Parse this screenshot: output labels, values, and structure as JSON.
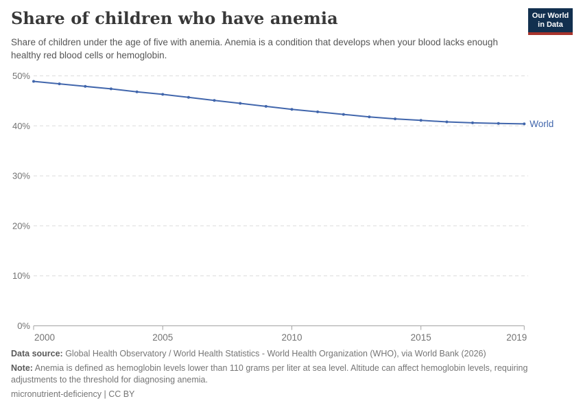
{
  "header": {
    "title": "Share of children who have anemia",
    "subtitle": "Share of children under the age of five with anemia. Anemia is a condition that develops when your blood lacks enough healthy red blood cells or hemoglobin.",
    "logo": {
      "line1": "Our World",
      "line2": "in Data",
      "bg_color": "#12304f",
      "accent_color": "#a8342c"
    }
  },
  "chart_data": {
    "type": "line",
    "title": "Share of children who have anemia",
    "x": [
      2000,
      2001,
      2002,
      2003,
      2004,
      2005,
      2006,
      2007,
      2008,
      2009,
      2010,
      2011,
      2012,
      2013,
      2014,
      2015,
      2016,
      2017,
      2018,
      2019
    ],
    "series": [
      {
        "name": "World",
        "color": "#4166ac",
        "values": [
          48.9,
          48.4,
          47.9,
          47.4,
          46.8,
          46.3,
          45.7,
          45.1,
          44.5,
          43.9,
          43.3,
          42.8,
          42.3,
          41.8,
          41.4,
          41.1,
          40.8,
          40.6,
          40.5,
          40.4
        ]
      }
    ],
    "xlabel": "",
    "ylabel": "",
    "ylim": [
      0,
      50
    ],
    "yticks": [
      0,
      10,
      20,
      30,
      40,
      50
    ],
    "ytick_labels": [
      "0%",
      "10%",
      "20%",
      "30%",
      "40%",
      "50%"
    ],
    "xticks": [
      2000,
      2005,
      2010,
      2015,
      2019
    ],
    "grid": "horizontal dashed gridlines, solid baseline at 0%",
    "legend_position": "label at right end of line",
    "colors": {
      "gridline": "#dcdcdc",
      "axis": "#a2a2a2",
      "tick_label": "#737373"
    }
  },
  "footer": {
    "data_source_label": "Data source:",
    "data_source_text": " Global Health Observatory / World Health Statistics - World Health Organization (WHO), via World Bank (2026)",
    "note_label": "Note:",
    "note_text": " Anemia is defined as hemoglobin levels lower than 110 grams per liter at sea level. Altitude can affect hemoglobin levels, requiring adjustments to the threshold for diagnosing anemia.",
    "license": "micronutrient-deficiency | CC BY"
  }
}
